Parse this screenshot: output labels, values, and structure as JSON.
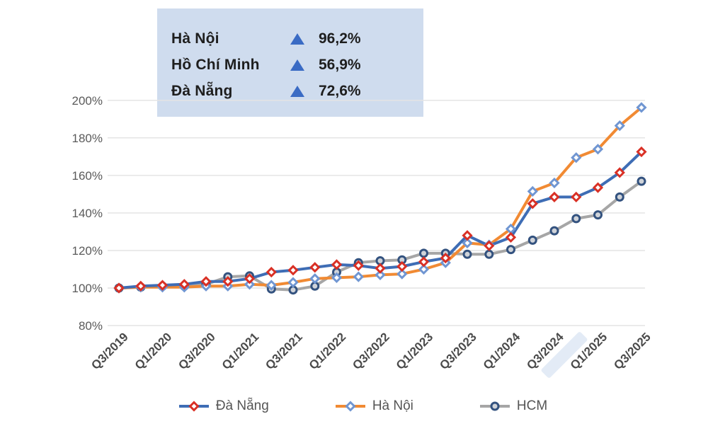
{
  "summary_box": {
    "triangle_color": "#3a6bc4",
    "bg_color": "#cfdcee",
    "rows": [
      {
        "label": "Hà Nội",
        "value": "96,2%"
      },
      {
        "label": "Hồ Chí Minh",
        "value": "56,9%"
      },
      {
        "label": "Đà Nẵng",
        "value": "72,6%"
      }
    ]
  },
  "chart_data": {
    "type": "line",
    "title": "",
    "xlabel": "",
    "ylabel": "",
    "ylim": [
      80,
      200
    ],
    "y_ticks": [
      80,
      100,
      120,
      140,
      160,
      180,
      200
    ],
    "y_tick_suffix": "%",
    "grid": "horizontal-only",
    "x_tick_labels": [
      "Q3/2019",
      "Q1/2020",
      "Q3/2020",
      "Q1/2021",
      "Q3/2021",
      "Q1/2022",
      "Q3/2022",
      "Q1/2023",
      "Q3/2023",
      "Q1/2024",
      "Q3/2024",
      "Q1/2025",
      "Q3/2025"
    ],
    "points_per_tick": 2,
    "series": [
      {
        "name": "Đà Nẵng",
        "line_color": "#3e6db5",
        "marker": "diamond",
        "marker_stroke": "#d93025",
        "marker_fill": "#ffffff",
        "values": [
          100,
          101,
          101.5,
          102,
          103.5,
          103.5,
          105,
          108.5,
          109.5,
          111,
          112.5,
          112,
          110.5,
          111.5,
          114,
          116,
          128,
          122.5,
          127,
          145,
          148.5,
          148.5,
          153.5,
          161.5,
          172.6
        ]
      },
      {
        "name": "Hà Nội",
        "line_color": "#f18a33",
        "marker": "diamond",
        "marker_stroke": "#7096d2",
        "marker_fill": "#ffffff",
        "values": [
          100,
          100.5,
          100.5,
          100.5,
          101,
          101,
          102,
          101.5,
          103,
          105,
          105.5,
          106,
          107,
          107.5,
          110,
          113.5,
          124,
          123,
          131.5,
          151.5,
          156,
          169.5,
          174,
          186.5,
          196.2
        ]
      },
      {
        "name": "HCM",
        "line_color": "#a6a6a6",
        "marker": "circle",
        "marker_stroke": "#33527f",
        "marker_fill": "#cfd3d9",
        "values": [
          100,
          100.5,
          101,
          101,
          102,
          106,
          106.5,
          99.5,
          99,
          101,
          108.5,
          113.5,
          114.5,
          115,
          118.5,
          118.5,
          118,
          118,
          120.5,
          125.5,
          130.5,
          137,
          139,
          148.5,
          156.9
        ]
      }
    ],
    "legend_position": "bottom"
  },
  "legend": {
    "items": [
      {
        "label": "Đà Nẵng",
        "series_ref": 0
      },
      {
        "label": "Hà Nội",
        "series_ref": 1
      },
      {
        "label": "HCM",
        "series_ref": 2
      }
    ]
  }
}
